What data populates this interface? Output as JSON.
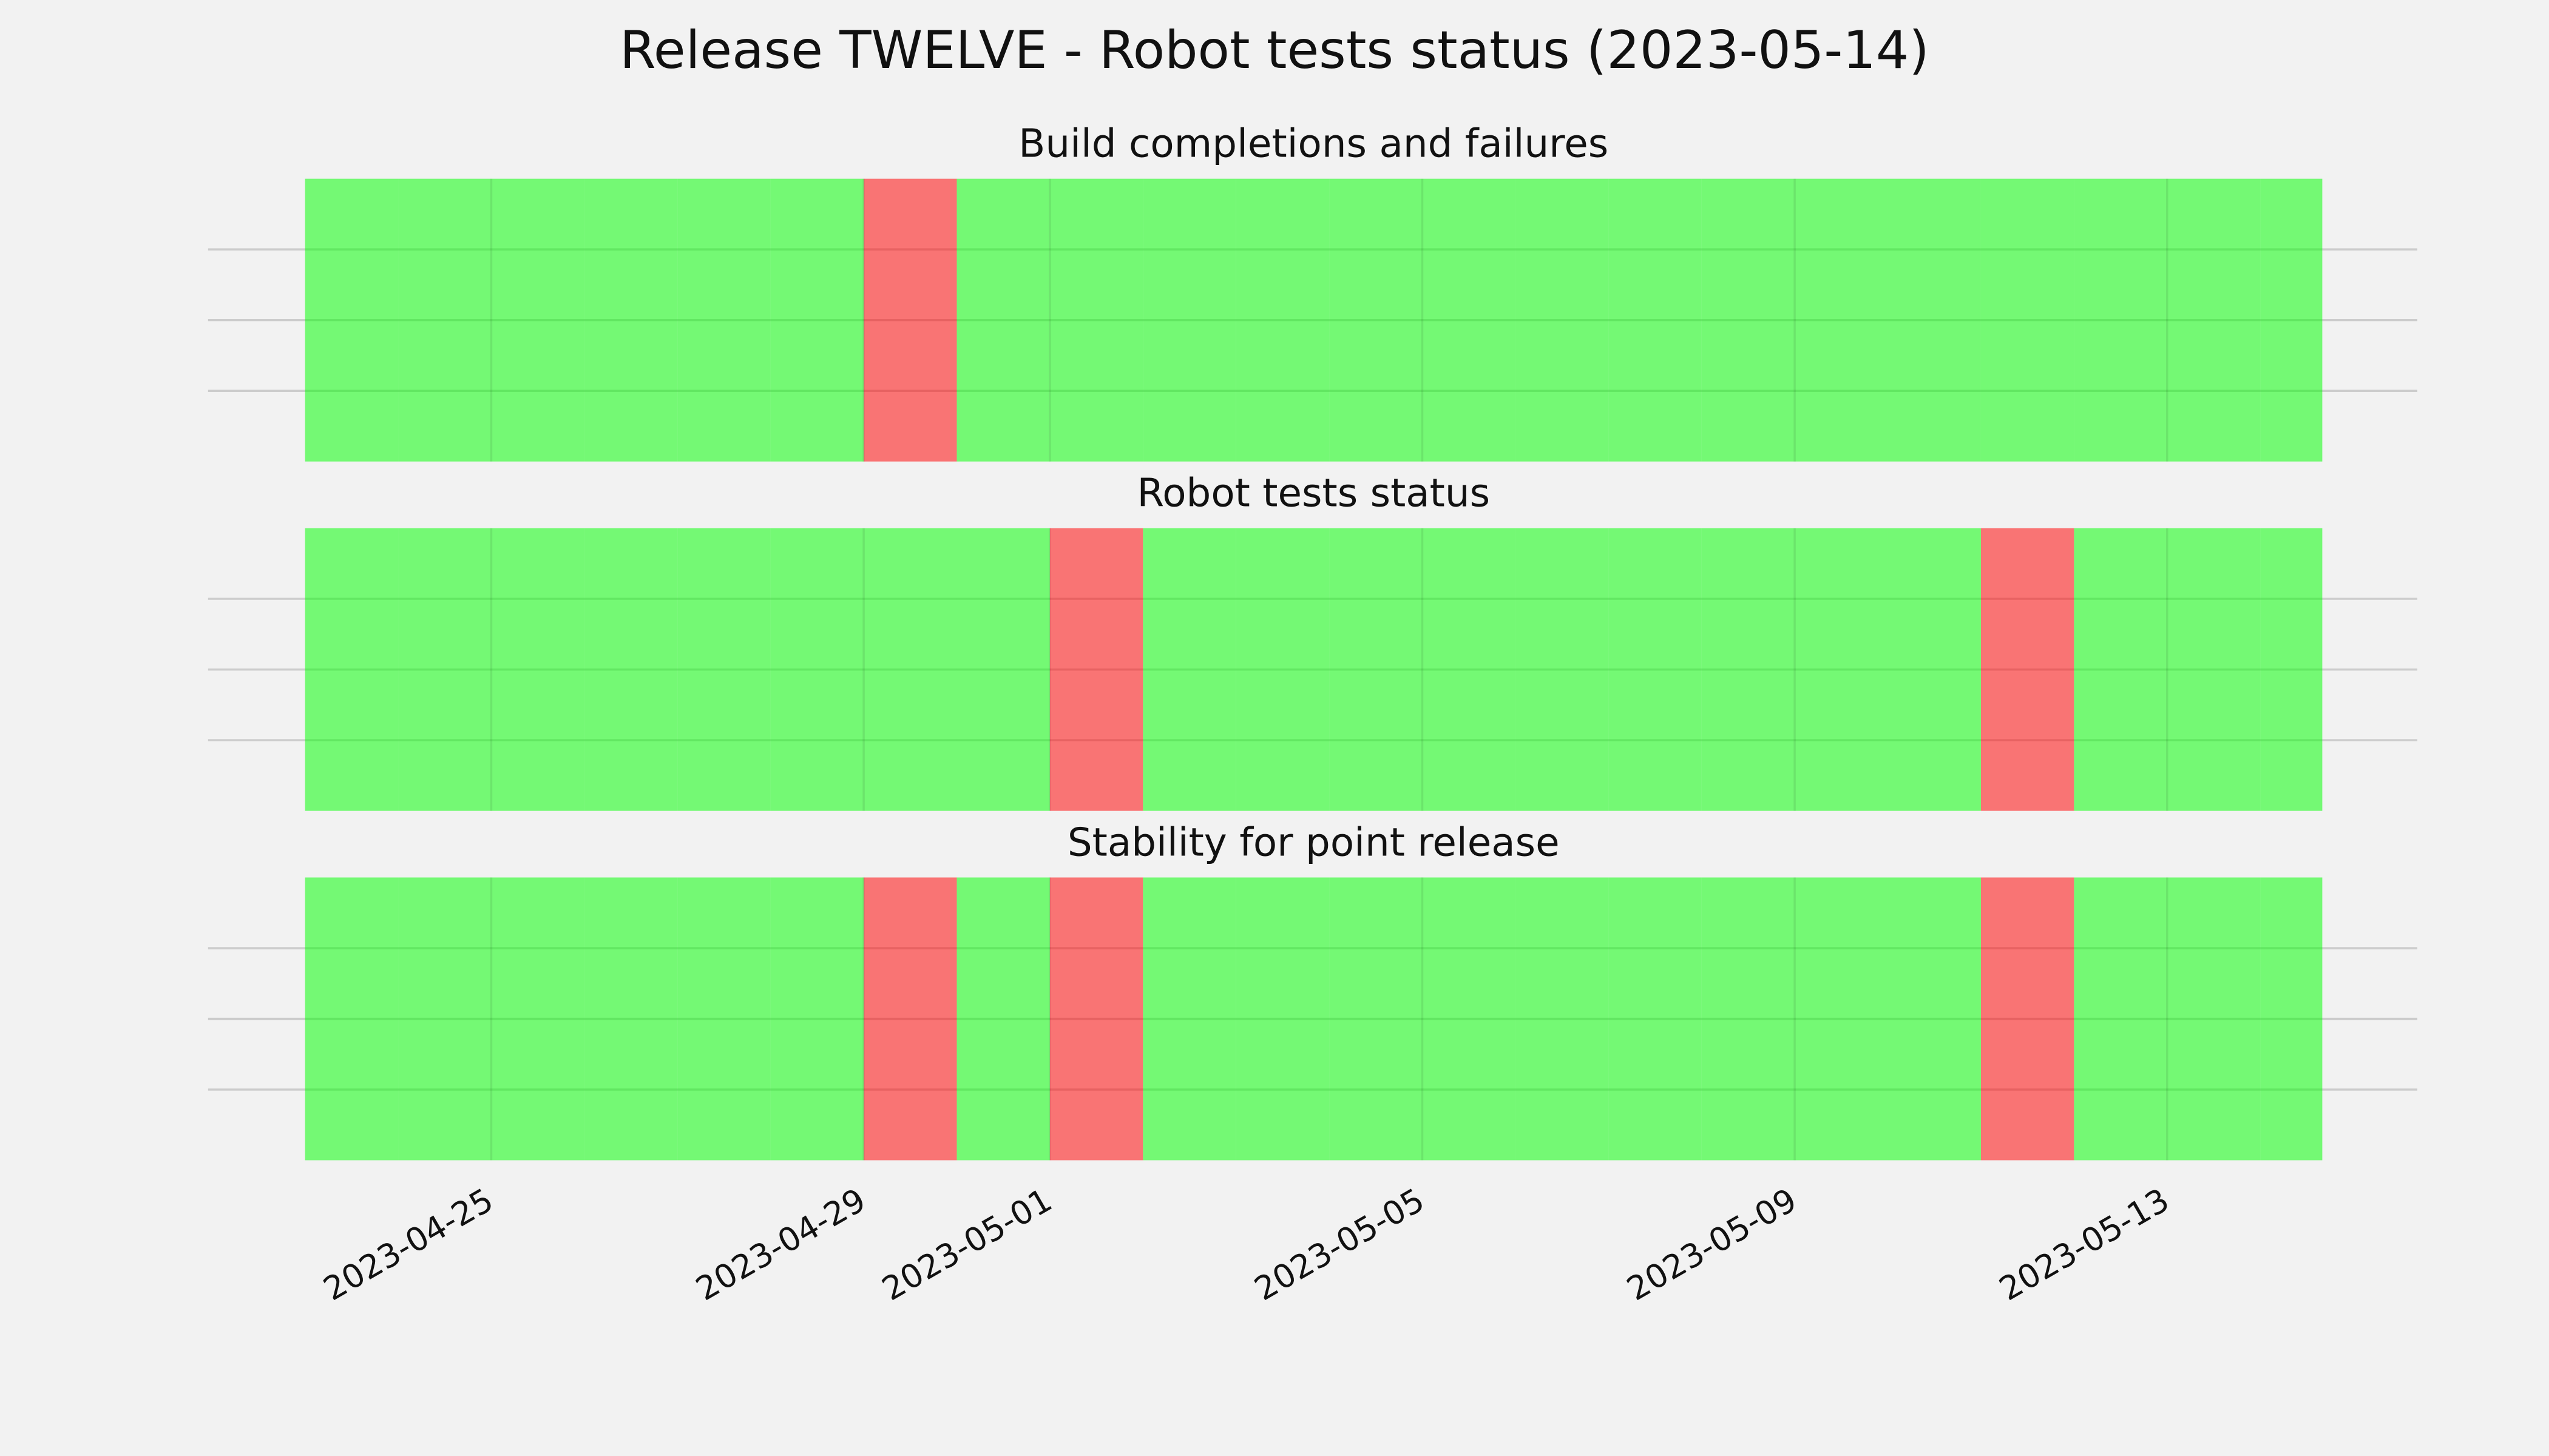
{
  "chart_data": {
    "type": "status_strip",
    "title": "Release TWELVE - Robot tests status (2023-05-14)",
    "x": [
      "2023-04-23",
      "2023-04-24",
      "2023-04-25",
      "2023-04-26",
      "2023-04-27",
      "2023-04-28",
      "2023-04-29",
      "2023-04-30",
      "2023-05-01",
      "2023-05-02",
      "2023-05-03",
      "2023-05-04",
      "2023-05-05",
      "2023-05-06",
      "2023-05-07",
      "2023-05-08",
      "2023-05-09",
      "2023-05-10",
      "2023-05-11",
      "2023-05-12",
      "2023-05-13",
      "2023-05-14"
    ],
    "x_end": "2023-05-14T16:00",
    "series": [
      {
        "name": "Build completions and failures",
        "values": [
          1,
          1,
          1,
          1,
          1,
          1,
          0,
          1,
          1,
          1,
          1,
          1,
          1,
          1,
          1,
          1,
          1,
          1,
          1,
          1,
          1,
          1
        ]
      },
      {
        "name": "Robot tests status",
        "values": [
          1,
          1,
          1,
          1,
          1,
          1,
          1,
          1,
          0,
          1,
          1,
          1,
          1,
          1,
          1,
          1,
          1,
          1,
          0,
          1,
          1,
          1
        ]
      },
      {
        "name": "Stability for point release",
        "values": [
          1,
          1,
          1,
          1,
          1,
          1,
          0,
          1,
          0,
          1,
          1,
          1,
          1,
          1,
          1,
          1,
          1,
          1,
          0,
          1,
          1,
          1
        ]
      }
    ],
    "pass_color": "#00ff00",
    "fail_color": "#ff0000",
    "xlim": [
      "2023-04-21T23:00",
      "2023-05-15T16:30"
    ],
    "xticks": [
      "2023-04-25",
      "2023-04-29",
      "2023-05-01",
      "2023-05-05",
      "2023-05-09",
      "2023-05-13"
    ],
    "ylim": [
      0,
      1
    ],
    "yticks": [
      0.25,
      0.5,
      0.75
    ],
    "grid": true
  }
}
